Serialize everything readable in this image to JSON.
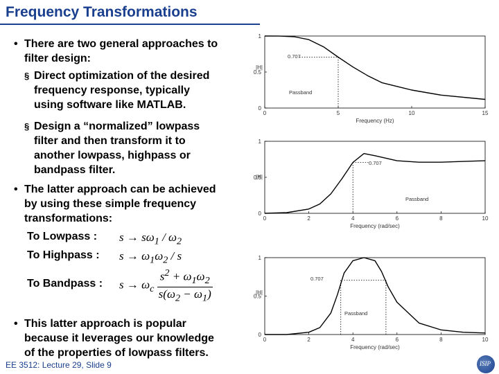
{
  "slide": {
    "title": "Frequency Transformations",
    "footer": "EE 3512: Lecture 29, Slide 9"
  },
  "bullets": {
    "b1_l1": "There are two general approaches to",
    "b1_l2": "filter design:",
    "s1_l1": "Direct optimization of the desired",
    "s1_l2": "frequency response, typically",
    "s1_l3": "using software like MATLAB.",
    "s2_l1": "Design a “normalized” lowpass",
    "s2_l2": "filter and then transform it to",
    "s2_l3": "another lowpass, highpass or",
    "s2_l4": "bandpass filter.",
    "b2_l1": "The latter approach can be achieved",
    "b2_l2": "by using these simple frequency",
    "b2_l3": "transformations:",
    "b3_l1": "This latter approach is popular",
    "b3_l2": "because it leverages our knowledge",
    "b3_l3": "of the properties of lowpass filters."
  },
  "transforms": {
    "lowpass_label": "To Lowpass :",
    "highpass_label": "To Highpass :",
    "bandpass_label": "To Bandpass :"
  },
  "chart_data": [
    {
      "type": "line",
      "ylabel": "|H|",
      "xlabel": "Frequency (Hz)",
      "xlim": [
        0,
        15
      ],
      "ylim": [
        0,
        1
      ],
      "xticks": [
        "0",
        "5",
        "10",
        "15"
      ],
      "yticks": [
        "0",
        "0.5",
        "1"
      ],
      "annotations": [
        "0.707",
        "Passband"
      ],
      "series": [
        {
          "x": [
            0,
            1,
            2,
            3,
            4,
            5,
            6,
            7,
            8,
            10,
            12,
            15
          ],
          "values": [
            1.0,
            0.999,
            0.99,
            0.95,
            0.85,
            0.707,
            0.57,
            0.45,
            0.35,
            0.25,
            0.18,
            0.12
          ]
        }
      ]
    },
    {
      "type": "line",
      "ylabel": "|H|",
      "xlabel": "Frequency (rad/sec)",
      "xlim": [
        0,
        10
      ],
      "ylim": [
        0,
        1
      ],
      "xticks": [
        "0",
        "2",
        "4",
        "6",
        "8",
        "10"
      ],
      "yticks": [
        "0",
        "0.5",
        "1"
      ],
      "annotations": [
        "0.707",
        "Passband"
      ],
      "series": [
        {
          "x": [
            0,
            1,
            2,
            2.5,
            3,
            3.5,
            4,
            4.5,
            5,
            6,
            7,
            8,
            9,
            10
          ],
          "values": [
            0.0,
            0.01,
            0.06,
            0.13,
            0.27,
            0.48,
            0.707,
            0.83,
            0.8,
            0.73,
            0.71,
            0.71,
            0.72,
            0.73
          ]
        }
      ]
    },
    {
      "type": "line",
      "ylabel": "|H|",
      "xlabel": "Frequency (rad/sec)",
      "xlim": [
        0,
        10
      ],
      "ylim": [
        0,
        1
      ],
      "xticks": [
        "0",
        "2",
        "4",
        "6",
        "8",
        "10"
      ],
      "yticks": [
        "0",
        "0.5",
        "1"
      ],
      "annotations": [
        "0.707",
        "Passband"
      ],
      "series": [
        {
          "x": [
            0,
            1,
            2,
            2.5,
            3,
            3.3,
            3.6,
            4,
            4.5,
            5,
            5.3,
            5.6,
            6,
            7,
            8,
            9,
            10
          ],
          "values": [
            0.0,
            0.0,
            0.03,
            0.09,
            0.28,
            0.52,
            0.8,
            0.96,
            1.0,
            0.96,
            0.82,
            0.62,
            0.42,
            0.15,
            0.06,
            0.03,
            0.02
          ]
        }
      ]
    }
  ]
}
